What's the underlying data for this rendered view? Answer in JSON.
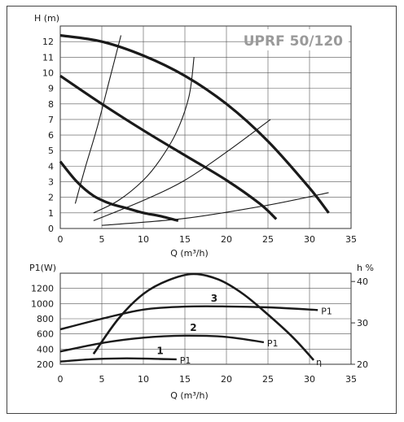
{
  "product_title": "UPRF 50/120",
  "chart_data": [
    {
      "type": "line",
      "title": "UPRF 50/120",
      "xlabel": "Q (m³/h)",
      "ylabel": "H (m)",
      "xlim": [
        0,
        35
      ],
      "ylim": [
        0,
        13
      ],
      "x_ticks": [
        0,
        5,
        10,
        15,
        20,
        25,
        30,
        35
      ],
      "y_ticks": [
        0,
        1,
        2,
        3,
        4,
        5,
        6,
        7,
        8,
        9,
        10,
        11,
        12
      ],
      "grid": true,
      "series": [
        {
          "role": "pump-speed-3",
          "style": "thick",
          "points": [
            [
              0,
              12.4
            ],
            [
              5,
              12.0
            ],
            [
              10,
              11.1
            ],
            [
              15,
              9.8
            ],
            [
              20,
              8.0
            ],
            [
              25,
              5.6
            ],
            [
              30,
              2.6
            ],
            [
              32.3,
              1.0
            ]
          ]
        },
        {
          "role": "pump-speed-2",
          "style": "thick",
          "points": [
            [
              0,
              9.8
            ],
            [
              5,
              8.0
            ],
            [
              10,
              6.3
            ],
            [
              15,
              4.7
            ],
            [
              20,
              3.1
            ],
            [
              24,
              1.6
            ],
            [
              26,
              0.6
            ]
          ]
        },
        {
          "role": "pump-speed-1",
          "style": "thick",
          "points": [
            [
              0,
              4.3
            ],
            [
              2,
              3.0
            ],
            [
              4,
              2.1
            ],
            [
              6,
              1.6
            ],
            [
              8,
              1.3
            ],
            [
              10,
              1.0
            ],
            [
              12,
              0.8
            ],
            [
              14.2,
              0.5
            ]
          ]
        },
        {
          "role": "system-curve",
          "style": "thin",
          "points": [
            [
              1.8,
              1.6
            ],
            [
              3,
              3.9
            ],
            [
              4.5,
              6.6
            ],
            [
              6,
              9.7
            ],
            [
              7.3,
              12.4
            ]
          ]
        },
        {
          "role": "system-curve",
          "style": "thin",
          "points": [
            [
              4,
              1.0
            ],
            [
              7,
              1.8
            ],
            [
              10,
              3.1
            ],
            [
              12,
              4.4
            ],
            [
              14,
              6.2
            ],
            [
              15.5,
              8.5
            ],
            [
              16.1,
              11.0
            ]
          ]
        },
        {
          "role": "system-curve",
          "style": "thin",
          "points": [
            [
              4,
              0.5
            ],
            [
              10,
              1.8
            ],
            [
              15,
              3.1
            ],
            [
              20,
              4.9
            ],
            [
              25.3,
              7.0
            ]
          ]
        },
        {
          "role": "system-curve",
          "style": "thin",
          "points": [
            [
              5,
              0.2
            ],
            [
              15,
              0.65
            ],
            [
              25,
              1.5
            ],
            [
              32.3,
              2.3
            ]
          ]
        }
      ]
    },
    {
      "type": "line",
      "xlabel": "Q (m³/h)",
      "ylabel": "P1(W)",
      "y2label": "h %",
      "xlim": [
        0,
        35
      ],
      "ylim": [
        200,
        1400
      ],
      "y2lim": [
        20,
        42
      ],
      "x_ticks": [
        0,
        5,
        10,
        15,
        20,
        25,
        30,
        35
      ],
      "y_ticks": [
        200,
        400,
        600,
        800,
        1000,
        1200
      ],
      "y2_ticks": [
        20,
        30,
        40
      ],
      "grid": true,
      "series": [
        {
          "role": "power-speed-1",
          "label": "P1",
          "number": "1",
          "axis": "left",
          "points": [
            [
              0,
              235
            ],
            [
              4,
              268
            ],
            [
              8,
              278
            ],
            [
              12,
              270
            ],
            [
              14,
              265
            ]
          ]
        },
        {
          "role": "power-speed-2",
          "label": "P1",
          "number": "2",
          "axis": "left",
          "points": [
            [
              0,
              368
            ],
            [
              5,
              480
            ],
            [
              10,
              550
            ],
            [
              15,
              577
            ],
            [
              20,
              560
            ],
            [
              24.5,
              490
            ]
          ]
        },
        {
          "role": "power-speed-3",
          "label": "P1",
          "number": "3",
          "axis": "left",
          "points": [
            [
              0,
              660
            ],
            [
              5,
              800
            ],
            [
              10,
              920
            ],
            [
              15,
              960
            ],
            [
              20,
              962
            ],
            [
              25,
              950
            ],
            [
              31,
              915
            ]
          ]
        },
        {
          "role": "efficiency",
          "label": "η",
          "axis": "right",
          "points": [
            [
              4,
              22.5
            ],
            [
              7,
              31.0
            ],
            [
              10,
              37.0
            ],
            [
              13,
              40.3
            ],
            [
              16,
              41.8
            ],
            [
              19,
              40.5
            ],
            [
              22,
              37.0
            ],
            [
              25,
              32.0
            ],
            [
              28,
              26.5
            ],
            [
              30.5,
              21.0
            ]
          ]
        }
      ]
    }
  ]
}
